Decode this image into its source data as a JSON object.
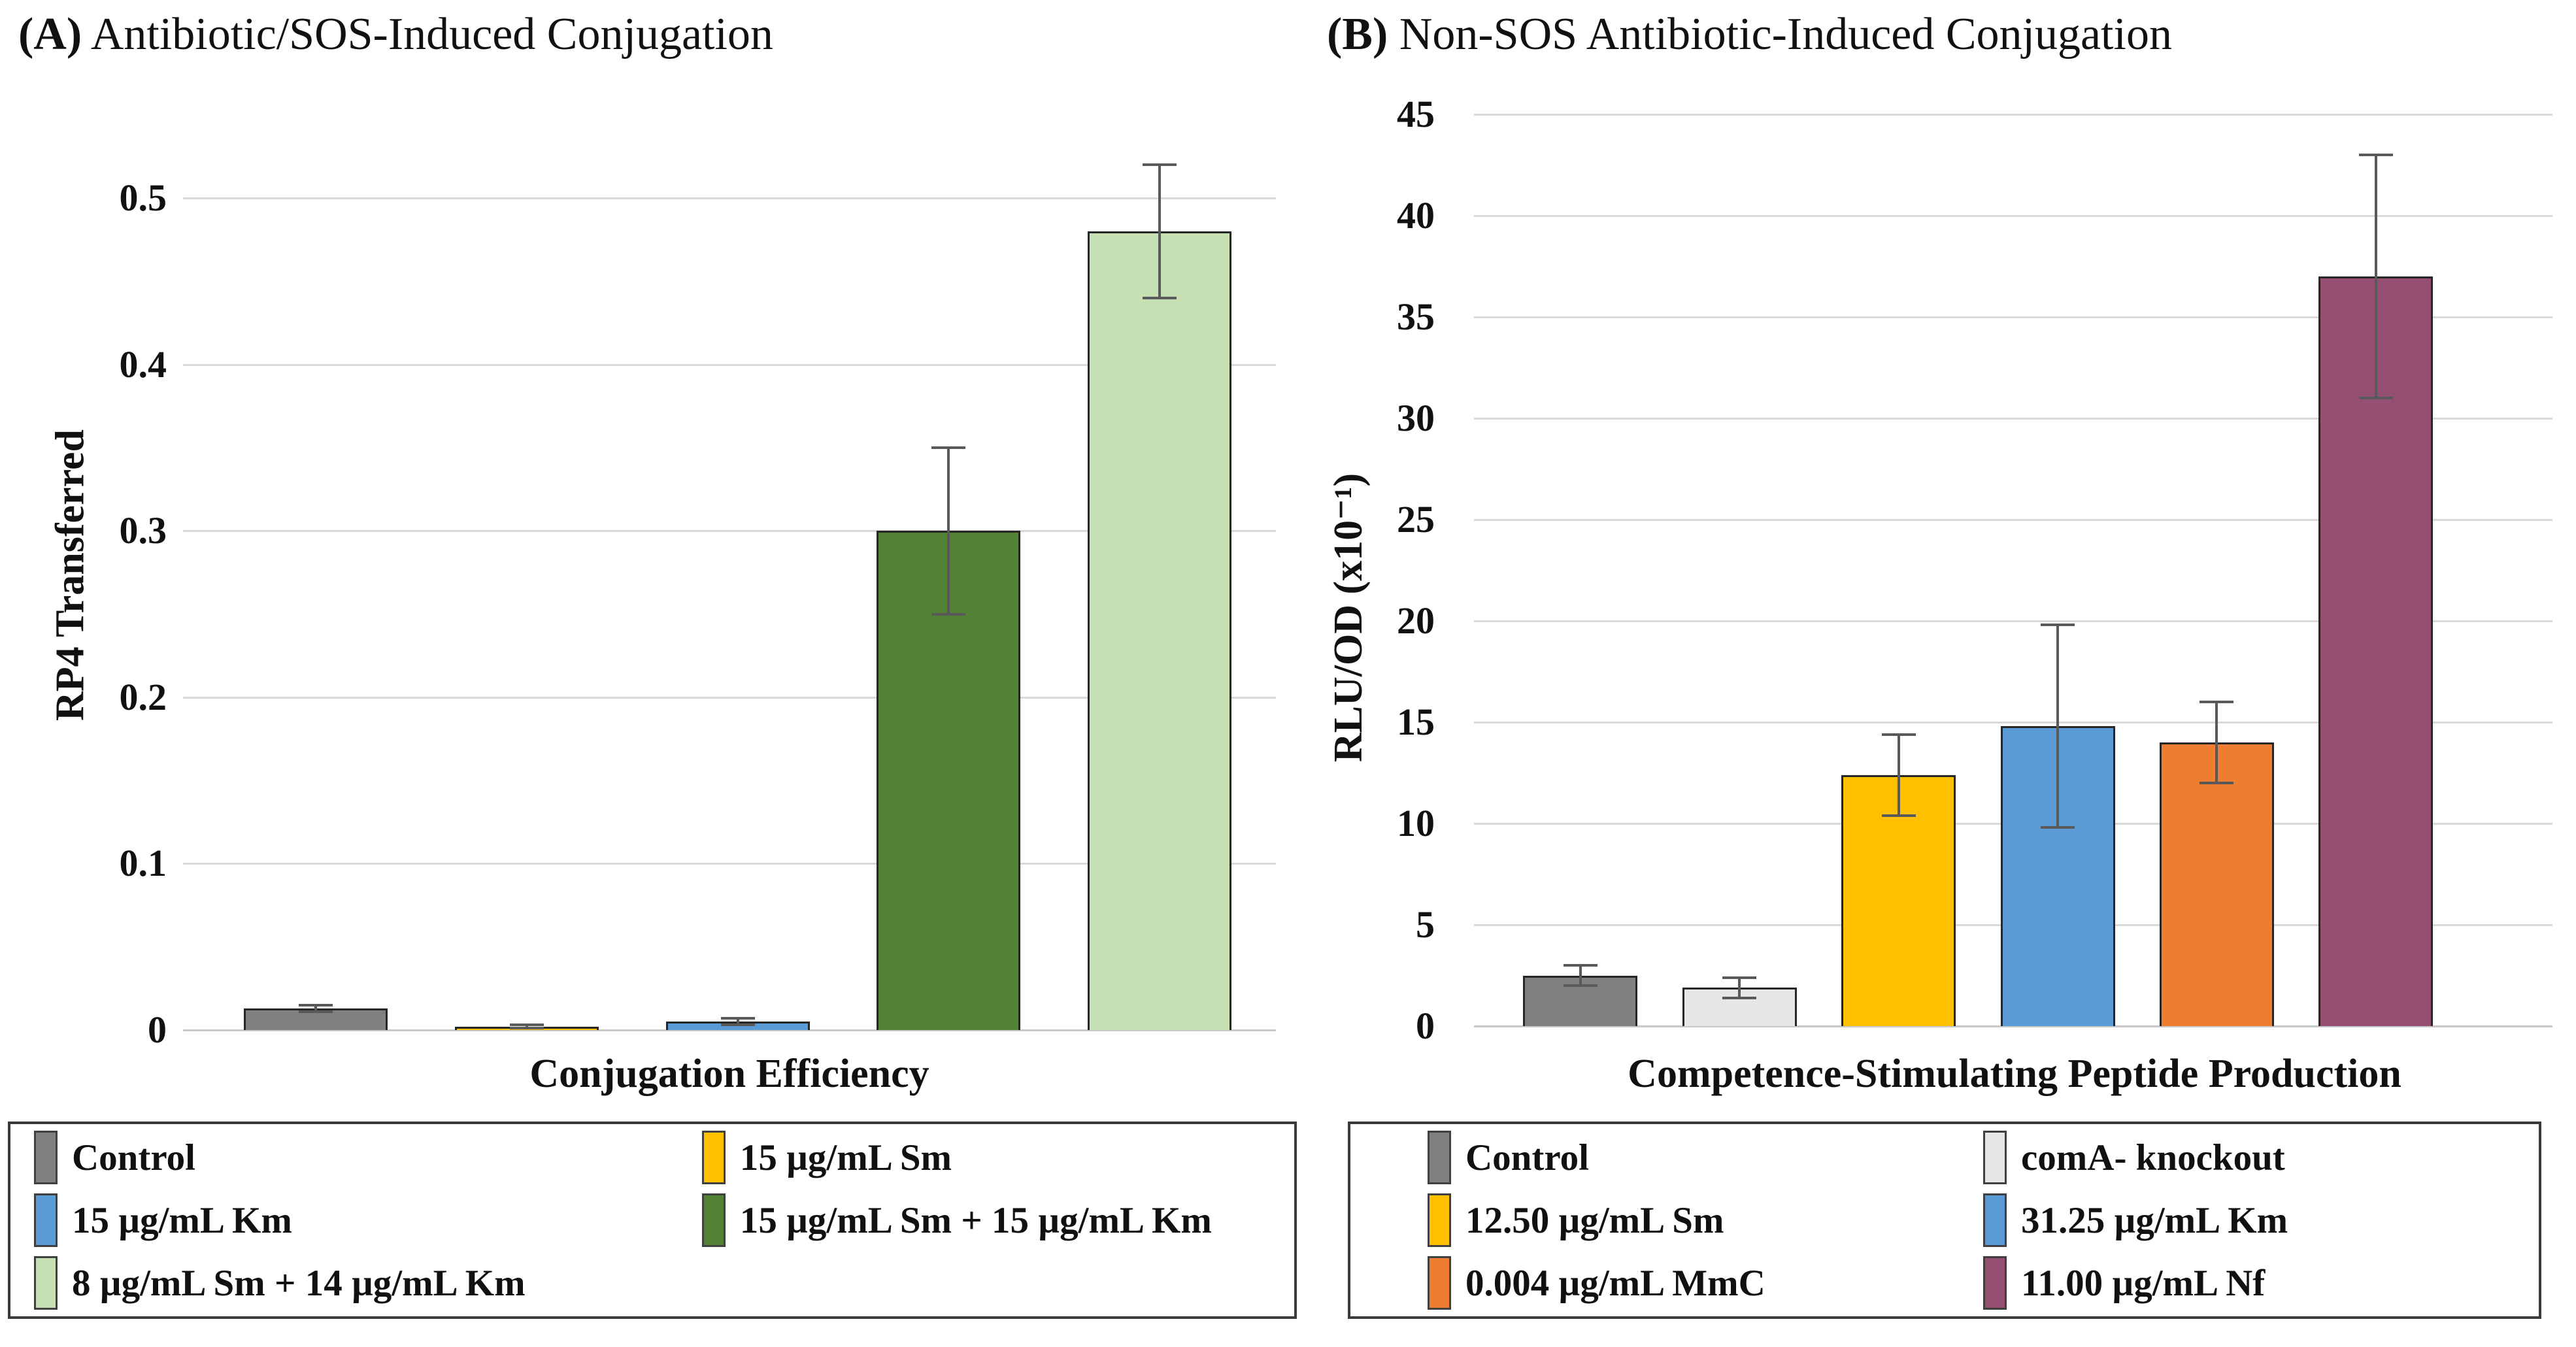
{
  "figure": {
    "background": "#ffffff",
    "gridline_color": "#d9d9d9",
    "error_bar_color": "#595959",
    "bar_border_color": "#262626"
  },
  "chart_data": [
    {
      "type": "bar",
      "id": "A",
      "title_prefix": "(A)",
      "title": " Antibiotic/SOS-Induced Conjugation",
      "ylabel": "RP4 Transferred",
      "xlabel": "Conjugation Efficiency",
      "ylim": [
        0,
        0.55
      ],
      "grid": true,
      "legend_position": "below",
      "yticks": [
        {
          "value": 0,
          "label": "0"
        },
        {
          "value": 0.1,
          "label": "0.1"
        },
        {
          "value": 0.2,
          "label": "0.2"
        },
        {
          "value": 0.3,
          "label": "0.3"
        },
        {
          "value": 0.4,
          "label": "0.4"
        },
        {
          "value": 0.5,
          "label": "0.5"
        }
      ],
      "bars": [
        {
          "label": "Control",
          "color": "#808080",
          "value": 0.013,
          "error": 0.002
        },
        {
          "label": "15 µg/mL Sm",
          "color": "#FFC000",
          "value": 0.002,
          "error": 0.001
        },
        {
          "label": "15 µg/mL Km",
          "color": "#5B9BD5",
          "value": 0.005,
          "error": 0.002
        },
        {
          "label": "15 µg/mL Sm + 15 µg/mL Km",
          "color": "#548235",
          "value": 0.3,
          "error": 0.05
        },
        {
          "label": "8 µg/mL Sm + 14 µg/mL Km",
          "color": "#C6E0B4",
          "value": 0.48,
          "error": 0.04
        }
      ]
    },
    {
      "type": "bar",
      "id": "B",
      "title_prefix": "(B)",
      "title": " Non-SOS Antibiotic-Induced Conjugation",
      "ylabel": "RLU/OD (x10⁻¹)",
      "xlabel": "Competence-Stimulating Peptide Production",
      "ylim": [
        0,
        45
      ],
      "grid": true,
      "legend_position": "below",
      "yticks": [
        {
          "value": 0,
          "label": "0"
        },
        {
          "value": 5,
          "label": "5"
        },
        {
          "value": 10,
          "label": "10"
        },
        {
          "value": 15,
          "label": "15"
        },
        {
          "value": 20,
          "label": "20"
        },
        {
          "value": 25,
          "label": "25"
        },
        {
          "value": 30,
          "label": "30"
        },
        {
          "value": 35,
          "label": "35"
        },
        {
          "value": 40,
          "label": "40"
        },
        {
          "value": 45,
          "label": "45"
        }
      ],
      "bars": [
        {
          "label": "Control",
          "color": "#808080",
          "value": 2.5,
          "error": 0.5
        },
        {
          "label": "comA- knockout",
          "color": "#E7E6E6",
          "value": 1.9,
          "error": 0.5
        },
        {
          "label": "12.50 µg/mL Sm",
          "color": "#FFC000",
          "value": 12.4,
          "error": 2.0
        },
        {
          "label": "31.25 µg/mL Km",
          "color": "#5B9BD5",
          "value": 14.8,
          "error": 5.0
        },
        {
          "label": "0.004 µg/mL MmC",
          "color": "#ED7D31",
          "value": 14.0,
          "error": 2.0
        },
        {
          "label": "11.00 µg/mL Nf",
          "color": "#954F72",
          "value": 37.0,
          "error": 6.0
        }
      ]
    }
  ]
}
